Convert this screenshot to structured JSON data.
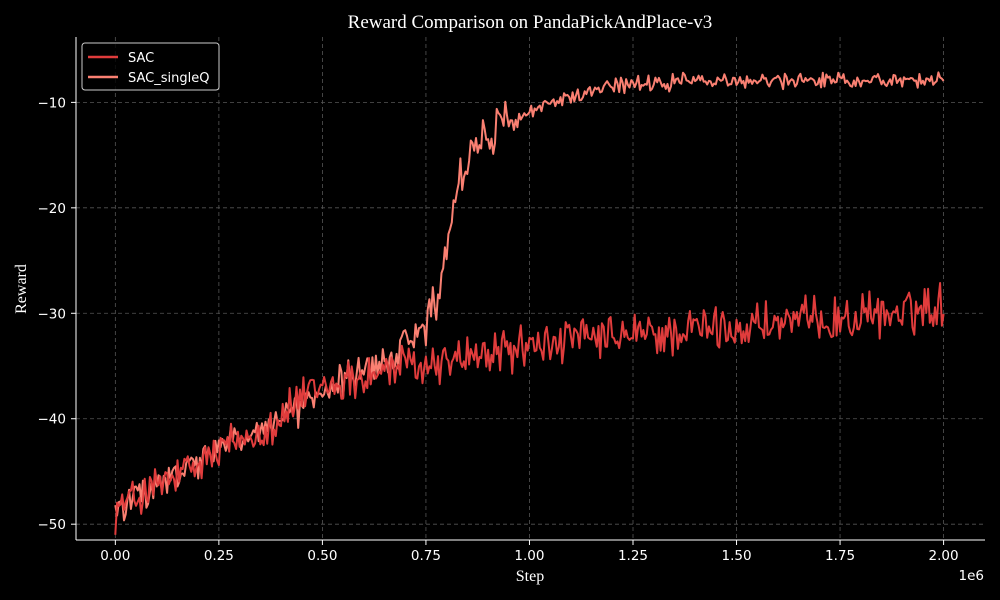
{
  "chart_data": {
    "type": "line",
    "title": "Reward Comparison on PandaPickAndPlace-v3",
    "xlabel": "Step",
    "ylabel": "Reward",
    "x_offset_text": "1e6",
    "xlim": [
      -0.095,
      2.1
    ],
    "ylim": [
      -51.5,
      -3.8
    ],
    "x_ticks": [
      0.0,
      0.25,
      0.5,
      0.75,
      1.0,
      1.25,
      1.5,
      1.75,
      2.0
    ],
    "x_tick_labels": [
      "0.00",
      "0.25",
      "0.50",
      "0.75",
      "1.00",
      "1.25",
      "1.50",
      "1.75",
      "2.00"
    ],
    "y_ticks": [
      -50,
      -40,
      -30,
      -20,
      -10
    ],
    "y_tick_labels": [
      "−50",
      "−40",
      "−30",
      "−20",
      "−10"
    ],
    "grid": true,
    "legend_position": "top-left",
    "background": "#000000",
    "series": [
      {
        "name": "SAC",
        "color": "#e03c3c",
        "x": [
          0.0,
          0.05,
          0.1,
          0.15,
          0.2,
          0.25,
          0.3,
          0.35,
          0.4,
          0.45,
          0.5,
          0.55,
          0.6,
          0.65,
          0.7,
          0.75,
          0.8,
          0.85,
          0.9,
          0.95,
          1.0,
          1.05,
          1.1,
          1.15,
          1.2,
          1.25,
          1.3,
          1.35,
          1.4,
          1.45,
          1.5,
          1.55,
          1.6,
          1.65,
          1.7,
          1.75,
          1.8,
          1.85,
          1.9,
          1.95,
          2.0
        ],
        "y": [
          -48.5,
          -47.5,
          -46.5,
          -45.5,
          -44.5,
          -43.0,
          -42.0,
          -41.0,
          -40.0,
          -38.0,
          -37.0,
          -36.5,
          -36.0,
          -35.5,
          -35.0,
          -35.0,
          -34.5,
          -34.0,
          -34.0,
          -33.5,
          -33.0,
          -33.0,
          -32.5,
          -32.5,
          -32.5,
          -32.0,
          -32.0,
          -32.0,
          -31.5,
          -31.5,
          -31.5,
          -31.0,
          -31.0,
          -31.0,
          -30.5,
          -30.5,
          -30.5,
          -30.0,
          -30.0,
          -29.5,
          -29.0
        ],
        "noise": 2.6
      },
      {
        "name": "SAC_singleQ",
        "color": "#fa8072",
        "x": [
          0.0,
          0.05,
          0.1,
          0.15,
          0.2,
          0.25,
          0.3,
          0.35,
          0.4,
          0.45,
          0.5,
          0.55,
          0.6,
          0.65,
          0.7,
          0.75,
          0.78,
          0.8,
          0.82,
          0.85,
          0.87,
          0.9,
          0.95,
          1.0,
          1.05,
          1.1,
          1.15,
          1.2,
          1.25,
          1.3,
          1.4,
          1.5,
          1.6,
          1.7,
          1.8,
          1.9,
          2.0
        ],
        "y": [
          -48.5,
          -47.5,
          -46.5,
          -45.5,
          -44.0,
          -43.0,
          -42.0,
          -41.0,
          -40.0,
          -39.0,
          -37.5,
          -36.5,
          -35.5,
          -35.0,
          -33.0,
          -31.0,
          -28.0,
          -24.0,
          -19.0,
          -15.5,
          -14.0,
          -13.0,
          -12.0,
          -11.0,
          -10.0,
          -9.5,
          -9.0,
          -8.5,
          -8.3,
          -8.2,
          -8.0,
          -8.0,
          -7.9,
          -7.9,
          -7.9,
          -7.9,
          -7.8
        ]
      }
    ]
  }
}
